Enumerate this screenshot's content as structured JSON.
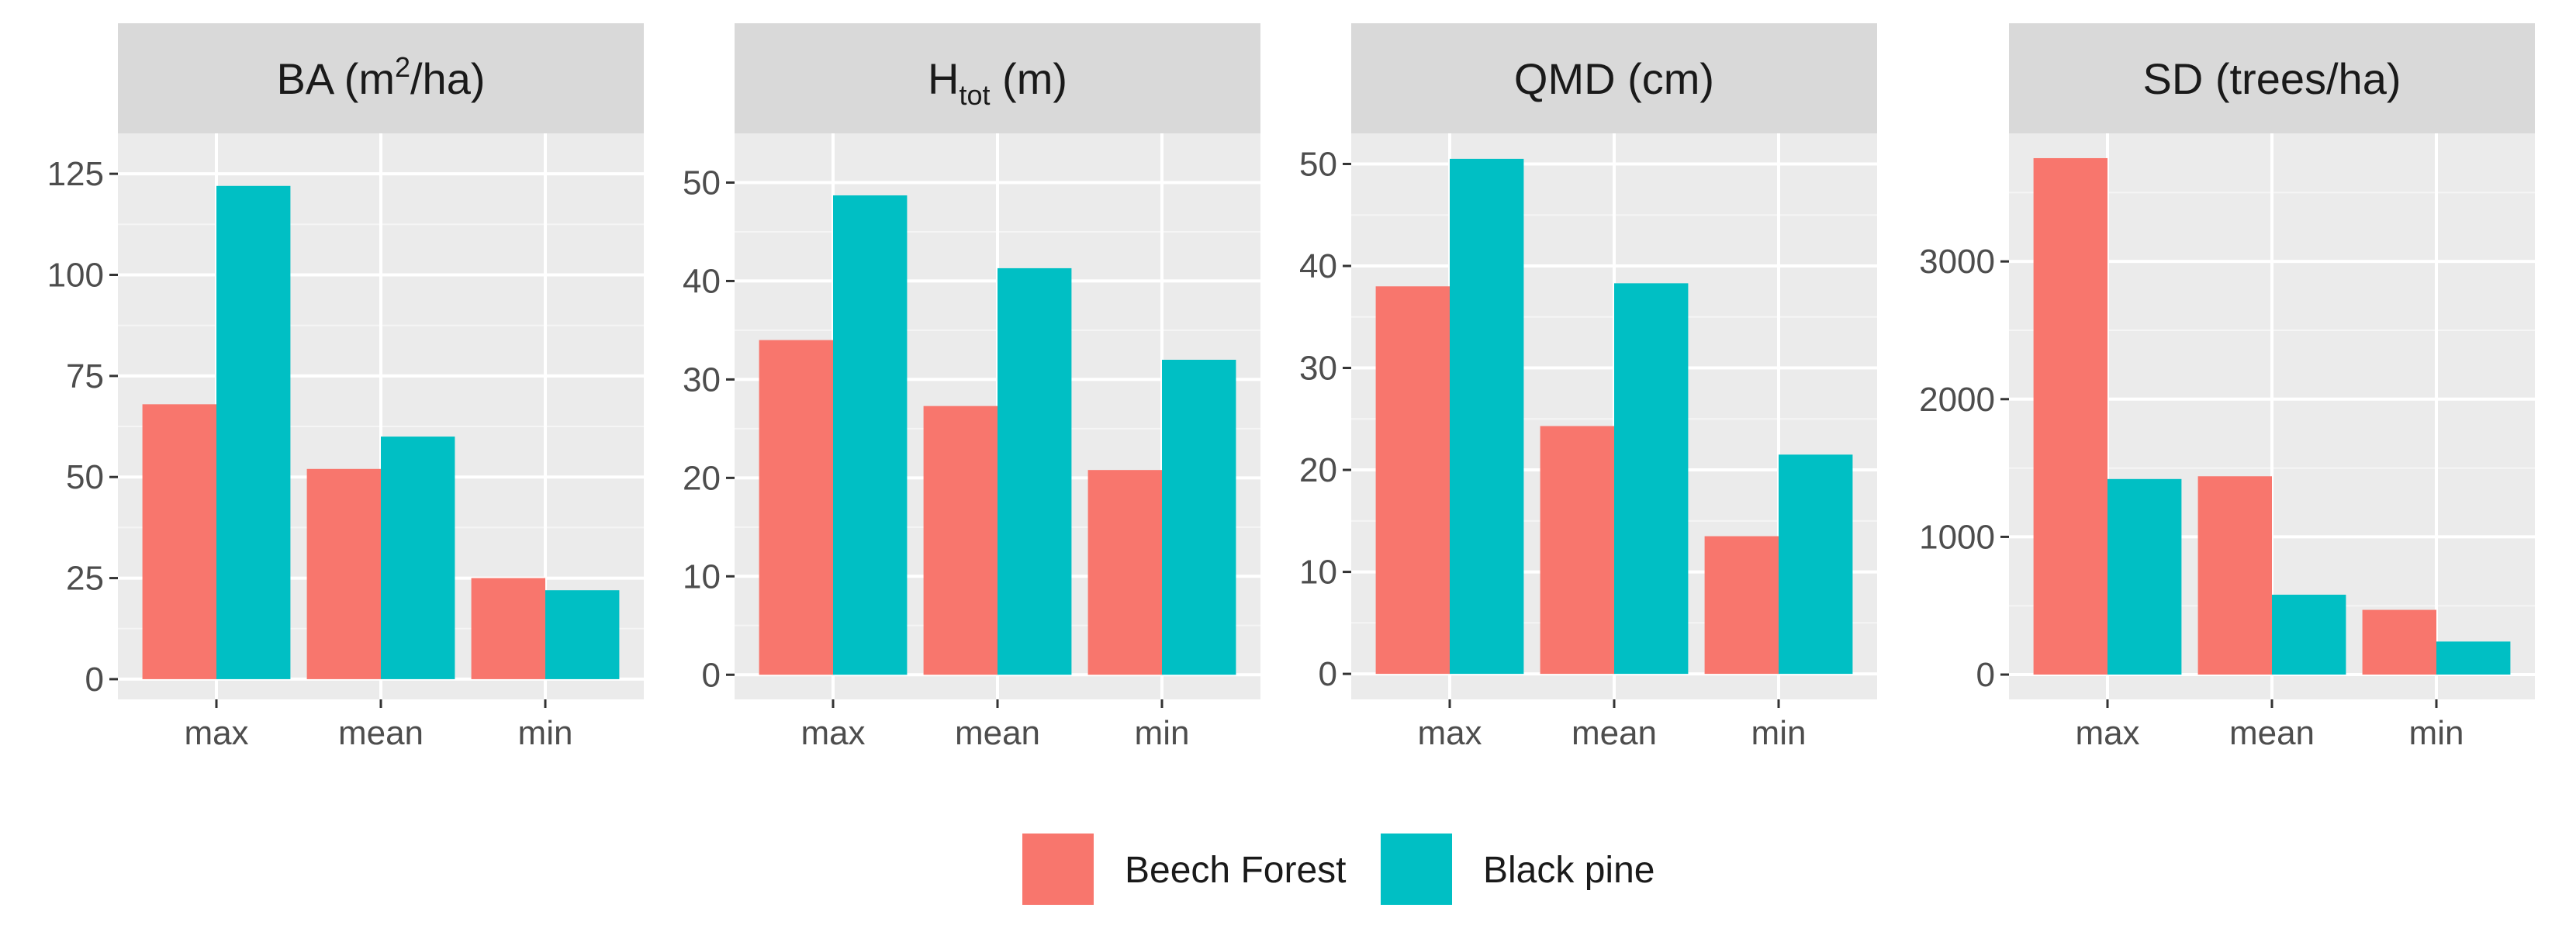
{
  "chart_data": {
    "type": "bar",
    "layout": "faceted",
    "legend_position": "bottom",
    "colors": {
      "Beech Forest": "#F8766D",
      "Black pine": "#00BFC4"
    },
    "legend": [
      {
        "name": "Beech Forest",
        "color": "#F8766D"
      },
      {
        "name": "Black pine",
        "color": "#00BFC4"
      }
    ],
    "panels": [
      {
        "title_main": "BA (m",
        "title_sup": "2",
        "title_tail": "/ha)",
        "categories": [
          "max",
          "mean",
          "min"
        ],
        "ylim": [
          -5,
          135
        ],
        "yticks": [
          0,
          25,
          50,
          75,
          100,
          125
        ],
        "series": [
          {
            "name": "Beech Forest",
            "values": [
              68,
              52,
              25
            ]
          },
          {
            "name": "Black pine",
            "values": [
              122,
              60,
              22
            ]
          }
        ]
      },
      {
        "title_main": "H",
        "title_sub": "tot",
        "title_tail": " (m)",
        "categories": [
          "max",
          "mean",
          "min"
        ],
        "ylim": [
          -2.5,
          55
        ],
        "yticks": [
          0,
          10,
          20,
          30,
          40,
          50
        ],
        "series": [
          {
            "name": "Beech Forest",
            "values": [
              34,
              27.3,
              20.8
            ]
          },
          {
            "name": "Black pine",
            "values": [
              48.7,
              41.3,
              32
            ]
          }
        ]
      },
      {
        "title_main": "QMD (cm)",
        "categories": [
          "max",
          "mean",
          "min"
        ],
        "ylim": [
          -2.5,
          53
        ],
        "yticks": [
          0,
          10,
          20,
          30,
          40,
          50
        ],
        "series": [
          {
            "name": "Beech Forest",
            "values": [
              38,
              24.3,
              13.5
            ]
          },
          {
            "name": "Black pine",
            "values": [
              50.5,
              38.3,
              21.5
            ]
          }
        ]
      },
      {
        "title_main": "SD (trees/ha)",
        "categories": [
          "max",
          "mean",
          "min"
        ],
        "ylim": [
          -180,
          3930
        ],
        "yticks": [
          0,
          1000,
          2000,
          3000
        ],
        "series": [
          {
            "name": "Beech Forest",
            "values": [
              3750,
              1440,
              470
            ]
          },
          {
            "name": "Black pine",
            "values": [
              1420,
              580,
              240
            ]
          }
        ]
      }
    ]
  }
}
